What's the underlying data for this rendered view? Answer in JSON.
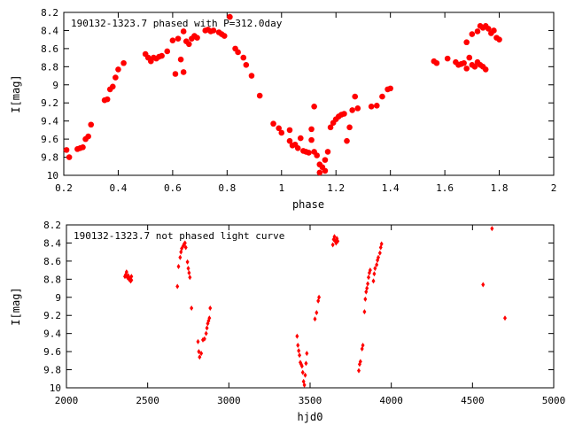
{
  "chart_data": [
    {
      "type": "scatter",
      "title": "190132-1323.7 phased with P=312.0day",
      "xlabel": "phase",
      "ylabel": "I[mag]",
      "xlim": [
        0.2,
        2.0
      ],
      "ylim": [
        8.2,
        10.0
      ],
      "y_inverted": true,
      "grid": false,
      "marker": "filled-circle-large",
      "color": "#ff0000",
      "x_ticks": [
        "0.2",
        "0.4",
        "0.6",
        "0.8",
        "1",
        "1.2",
        "1.4",
        "1.6",
        "1.8",
        "2"
      ],
      "y_ticks": [
        "8.2",
        "8.4",
        "8.6",
        "8.8",
        "9",
        "9.2",
        "9.4",
        "9.6",
        "9.8",
        "10"
      ],
      "points": [
        [
          0.21,
          9.72
        ],
        [
          0.22,
          9.8
        ],
        [
          0.25,
          9.71
        ],
        [
          0.26,
          9.7
        ],
        [
          0.27,
          9.69
        ],
        [
          0.28,
          9.6
        ],
        [
          0.29,
          9.57
        ],
        [
          0.3,
          9.44
        ],
        [
          0.35,
          9.17
        ],
        [
          0.36,
          9.16
        ],
        [
          0.37,
          9.05
        ],
        [
          0.38,
          9.02
        ],
        [
          0.39,
          8.92
        ],
        [
          0.4,
          8.83
        ],
        [
          0.42,
          8.76
        ],
        [
          0.5,
          8.66
        ],
        [
          0.51,
          8.7
        ],
        [
          0.52,
          8.74
        ],
        [
          0.53,
          8.7
        ],
        [
          0.54,
          8.71
        ],
        [
          0.55,
          8.69
        ],
        [
          0.56,
          8.68
        ],
        [
          0.58,
          8.63
        ],
        [
          0.6,
          8.51
        ],
        [
          0.61,
          8.88
        ],
        [
          0.62,
          8.49
        ],
        [
          0.63,
          8.72
        ],
        [
          0.64,
          8.86
        ],
        [
          0.64,
          8.41
        ],
        [
          0.65,
          8.52
        ],
        [
          0.66,
          8.55
        ],
        [
          0.67,
          8.49
        ],
        [
          0.68,
          8.46
        ],
        [
          0.69,
          8.48
        ],
        [
          0.72,
          8.4
        ],
        [
          0.73,
          8.39
        ],
        [
          0.74,
          8.41
        ],
        [
          0.75,
          8.4
        ],
        [
          0.77,
          8.42
        ],
        [
          0.78,
          8.44
        ],
        [
          0.79,
          8.46
        ],
        [
          0.81,
          8.25
        ],
        [
          0.83,
          8.6
        ],
        [
          0.84,
          8.64
        ],
        [
          0.86,
          8.7
        ],
        [
          0.87,
          8.78
        ],
        [
          0.89,
          8.9
        ],
        [
          0.92,
          9.12
        ],
        [
          0.97,
          9.43
        ],
        [
          0.99,
          9.48
        ],
        [
          1.0,
          9.53
        ],
        [
          1.03,
          9.5
        ],
        [
          1.03,
          9.62
        ],
        [
          1.04,
          9.67
        ],
        [
          1.05,
          9.66
        ],
        [
          1.06,
          9.7
        ],
        [
          1.07,
          9.59
        ],
        [
          1.08,
          9.73
        ],
        [
          1.09,
          9.74
        ],
        [
          1.1,
          9.75
        ],
        [
          1.11,
          9.61
        ],
        [
          1.11,
          9.49
        ],
        [
          1.12,
          9.24
        ],
        [
          1.12,
          9.74
        ],
        [
          1.13,
          9.78
        ],
        [
          1.14,
          9.88
        ],
        [
          1.14,
          9.97
        ],
        [
          1.15,
          9.91
        ],
        [
          1.16,
          9.95
        ],
        [
          1.16,
          9.83
        ],
        [
          1.17,
          9.74
        ],
        [
          1.18,
          9.47
        ],
        [
          1.19,
          9.42
        ],
        [
          1.2,
          9.38
        ],
        [
          1.21,
          9.35
        ],
        [
          1.22,
          9.33
        ],
        [
          1.23,
          9.32
        ],
        [
          1.24,
          9.62
        ],
        [
          1.25,
          9.47
        ],
        [
          1.26,
          9.28
        ],
        [
          1.27,
          9.13
        ],
        [
          1.28,
          9.26
        ],
        [
          1.33,
          9.24
        ],
        [
          1.35,
          9.23
        ],
        [
          1.37,
          9.13
        ],
        [
          1.39,
          9.05
        ],
        [
          1.4,
          9.04
        ],
        [
          1.56,
          8.74
        ],
        [
          1.57,
          8.76
        ],
        [
          1.61,
          8.71
        ],
        [
          1.64,
          8.75
        ],
        [
          1.65,
          8.78
        ],
        [
          1.66,
          8.77
        ],
        [
          1.67,
          8.76
        ],
        [
          1.68,
          8.82
        ],
        [
          1.68,
          8.53
        ],
        [
          1.69,
          8.7
        ],
        [
          1.7,
          8.78
        ],
        [
          1.7,
          8.44
        ],
        [
          1.71,
          8.8
        ],
        [
          1.72,
          8.41
        ],
        [
          1.72,
          8.75
        ],
        [
          1.73,
          8.35
        ],
        [
          1.73,
          8.78
        ],
        [
          1.74,
          8.37
        ],
        [
          1.74,
          8.8
        ],
        [
          1.75,
          8.35
        ],
        [
          1.75,
          8.83
        ],
        [
          1.76,
          8.38
        ],
        [
          1.77,
          8.43
        ],
        [
          1.78,
          8.4
        ],
        [
          1.79,
          8.48
        ],
        [
          1.8,
          8.5
        ]
      ]
    },
    {
      "type": "scatter",
      "title": "190132-1323.7 not phased light curve",
      "xlabel": "hjd0",
      "ylabel": "I[mag]",
      "xlim": [
        2000,
        5000
      ],
      "ylim": [
        8.2,
        10.0
      ],
      "y_inverted": true,
      "grid": false,
      "marker": "small-diamond",
      "color": "#ff0000",
      "x_ticks": [
        "2000",
        "2500",
        "3000",
        "3500",
        "4000",
        "4500",
        "5000"
      ],
      "y_ticks": [
        "8.2",
        "8.4",
        "8.6",
        "8.8",
        "9",
        "9.2",
        "9.4",
        "9.6",
        "9.8",
        "10"
      ],
      "points": [
        [
          2360,
          8.77
        ],
        [
          2365,
          8.75
        ],
        [
          2370,
          8.72
        ],
        [
          2375,
          8.78
        ],
        [
          2380,
          8.76
        ],
        [
          2385,
          8.8
        ],
        [
          2390,
          8.79
        ],
        [
          2395,
          8.82
        ],
        [
          2400,
          8.81
        ],
        [
          2400,
          8.77
        ],
        [
          2683,
          8.88
        ],
        [
          2690,
          8.66
        ],
        [
          2700,
          8.56
        ],
        [
          2705,
          8.5
        ],
        [
          2710,
          8.46
        ],
        [
          2720,
          8.43
        ],
        [
          2725,
          8.41
        ],
        [
          2730,
          8.4
        ],
        [
          2735,
          8.45
        ],
        [
          2745,
          8.61
        ],
        [
          2750,
          8.68
        ],
        [
          2755,
          8.73
        ],
        [
          2760,
          8.78
        ],
        [
          2770,
          9.12
        ],
        [
          2810,
          9.49
        ],
        [
          2815,
          9.6
        ],
        [
          2820,
          9.66
        ],
        [
          2830,
          9.62
        ],
        [
          2840,
          9.47
        ],
        [
          2850,
          9.46
        ],
        [
          2860,
          9.4
        ],
        [
          2865,
          9.34
        ],
        [
          2870,
          9.29
        ],
        [
          2875,
          9.26
        ],
        [
          2880,
          9.23
        ],
        [
          2885,
          9.12
        ],
        [
          3420,
          9.43
        ],
        [
          3425,
          9.53
        ],
        [
          3430,
          9.59
        ],
        [
          3435,
          9.64
        ],
        [
          3440,
          9.72
        ],
        [
          3445,
          9.74
        ],
        [
          3450,
          9.76
        ],
        [
          3455,
          9.83
        ],
        [
          3460,
          9.93
        ],
        [
          3465,
          9.97
        ],
        [
          3470,
          9.86
        ],
        [
          3475,
          9.73
        ],
        [
          3480,
          9.62
        ],
        [
          3530,
          9.24
        ],
        [
          3540,
          9.17
        ],
        [
          3550,
          9.04
        ],
        [
          3555,
          9.0
        ],
        [
          3640,
          8.42
        ],
        [
          3645,
          8.36
        ],
        [
          3650,
          8.33
        ],
        [
          3655,
          8.38
        ],
        [
          3660,
          8.4
        ],
        [
          3665,
          8.35
        ],
        [
          3670,
          8.38
        ],
        [
          3800,
          9.81
        ],
        [
          3805,
          9.74
        ],
        [
          3810,
          9.71
        ],
        [
          3820,
          9.57
        ],
        [
          3825,
          9.53
        ],
        [
          3835,
          9.16
        ],
        [
          3840,
          9.02
        ],
        [
          3845,
          8.94
        ],
        [
          3850,
          8.9
        ],
        [
          3855,
          8.85
        ],
        [
          3860,
          8.78
        ],
        [
          3865,
          8.73
        ],
        [
          3870,
          8.7
        ],
        [
          3890,
          8.82
        ],
        [
          3895,
          8.74
        ],
        [
          3900,
          8.68
        ],
        [
          3910,
          8.64
        ],
        [
          3915,
          8.59
        ],
        [
          3920,
          8.56
        ],
        [
          3930,
          8.51
        ],
        [
          3935,
          8.45
        ],
        [
          3940,
          8.41
        ],
        [
          4565,
          8.86
        ],
        [
          4620,
          8.24
        ],
        [
          4700,
          9.23
        ]
      ]
    }
  ]
}
